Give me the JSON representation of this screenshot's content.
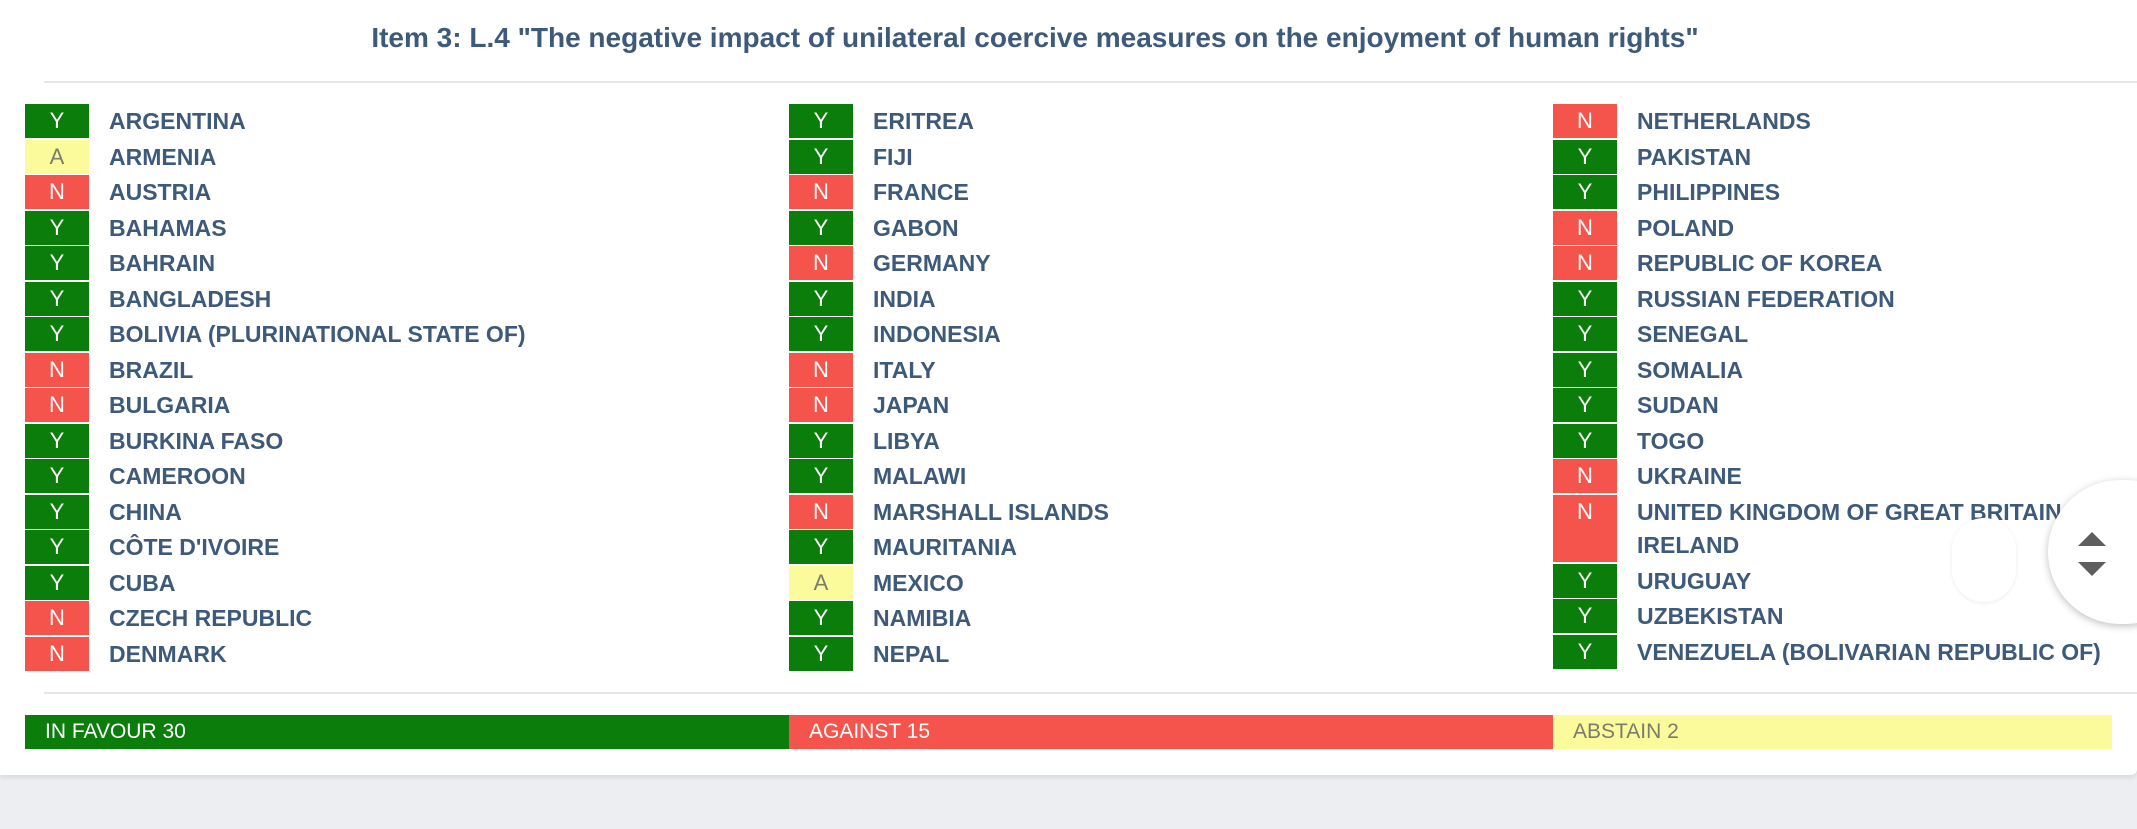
{
  "title": "Item 3: L.4 \"The negative impact of unilateral coercive measures on the enjoyment of human rights\"",
  "colors": {
    "yes": "#0b7d0b",
    "no": "#f4544b",
    "abstain": "#fbfb9c",
    "text": "#3d5a7a"
  },
  "columns": [
    [
      {
        "vote": "Y",
        "country": "ARGENTINA"
      },
      {
        "vote": "A",
        "country": "ARMENIA"
      },
      {
        "vote": "N",
        "country": "AUSTRIA"
      },
      {
        "vote": "Y",
        "country": "BAHAMAS"
      },
      {
        "vote": "Y",
        "country": "BAHRAIN"
      },
      {
        "vote": "Y",
        "country": "BANGLADESH"
      },
      {
        "vote": "Y",
        "country": "BOLIVIA (PLURINATIONAL STATE OF)"
      },
      {
        "vote": "N",
        "country": "BRAZIL"
      },
      {
        "vote": "N",
        "country": "BULGARIA"
      },
      {
        "vote": "Y",
        "country": "BURKINA FASO"
      },
      {
        "vote": "Y",
        "country": "CAMEROON"
      },
      {
        "vote": "Y",
        "country": "CHINA"
      },
      {
        "vote": "Y",
        "country": "CÔTE D'IVOIRE"
      },
      {
        "vote": "Y",
        "country": "CUBA"
      },
      {
        "vote": "N",
        "country": "CZECH REPUBLIC"
      },
      {
        "vote": "N",
        "country": "DENMARK"
      }
    ],
    [
      {
        "vote": "Y",
        "country": "ERITREA"
      },
      {
        "vote": "Y",
        "country": "FIJI"
      },
      {
        "vote": "N",
        "country": "FRANCE"
      },
      {
        "vote": "Y",
        "country": "GABON"
      },
      {
        "vote": "N",
        "country": "GERMANY"
      },
      {
        "vote": "Y",
        "country": "INDIA"
      },
      {
        "vote": "Y",
        "country": "INDONESIA"
      },
      {
        "vote": "N",
        "country": "ITALY"
      },
      {
        "vote": "N",
        "country": "JAPAN"
      },
      {
        "vote": "Y",
        "country": "LIBYA"
      },
      {
        "vote": "Y",
        "country": "MALAWI"
      },
      {
        "vote": "N",
        "country": "MARSHALL ISLANDS"
      },
      {
        "vote": "Y",
        "country": "MAURITANIA"
      },
      {
        "vote": "A",
        "country": "MEXICO"
      },
      {
        "vote": "Y",
        "country": "NAMIBIA"
      },
      {
        "vote": "Y",
        "country": "NEPAL"
      }
    ],
    [
      {
        "vote": "N",
        "country": "NETHERLANDS"
      },
      {
        "vote": "Y",
        "country": "PAKISTAN"
      },
      {
        "vote": "Y",
        "country": "PHILIPPINES"
      },
      {
        "vote": "N",
        "country": "POLAND"
      },
      {
        "vote": "N",
        "country": "REPUBLIC OF KOREA"
      },
      {
        "vote": "Y",
        "country": "RUSSIAN FEDERATION"
      },
      {
        "vote": "Y",
        "country": "SENEGAL"
      },
      {
        "vote": "Y",
        "country": "SOMALIA"
      },
      {
        "vote": "Y",
        "country": "SUDAN"
      },
      {
        "vote": "Y",
        "country": "TOGO"
      },
      {
        "vote": "N",
        "country": "UKRAINE"
      },
      {
        "vote": "N",
        "country": "UNITED KINGDOM OF GREAT BRITAIN",
        "country2": "IRELAND"
      },
      {
        "vote": "Y",
        "country": "URUGUAY"
      },
      {
        "vote": "Y",
        "country": "UZBEKISTAN"
      },
      {
        "vote": "Y",
        "country": "VENEZUELA (BOLIVARIAN REPUBLIC OF)"
      }
    ]
  ],
  "tally": {
    "favour": "IN FAVOUR 30",
    "against": "AGAINST 15",
    "abstain": "ABSTAIN 2"
  },
  "scroll_control": {
    "up_icon": "triangle-up-icon",
    "down_icon": "triangle-down-icon"
  }
}
